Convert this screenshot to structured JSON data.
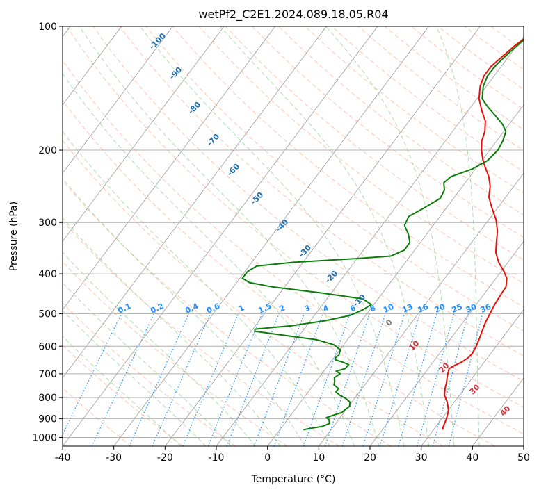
{
  "chart_data": {
    "type": "line",
    "title": "wetPf2_C2E1.2024.089.18.05.R04",
    "xlabel": "Temperature (°C)",
    "ylabel": "Pressure (hPa)",
    "xlim": [
      -40,
      50
    ],
    "ylim": [
      1050,
      100
    ],
    "x_ticks": [
      "-40",
      "-30",
      "-20",
      "-10",
      "0",
      "10",
      "20",
      "30",
      "40",
      "50"
    ],
    "y_ticks": [
      {
        "value": 100,
        "label": "100"
      },
      {
        "value": 200,
        "label": "200"
      },
      {
        "value": 300,
        "label": "300"
      },
      {
        "value": 400,
        "label": "400"
      },
      {
        "value": 500,
        "label": "500"
      },
      {
        "value": 600,
        "label": "600"
      },
      {
        "value": 700,
        "label": "700"
      },
      {
        "value": 800,
        "label": "800"
      },
      {
        "value": 900,
        "label": "900"
      },
      {
        "value": 1000,
        "label": "1000"
      }
    ],
    "isotherm_labels": [
      "-100",
      "-90",
      "-80",
      "-70",
      "-60",
      "-50",
      "-40",
      "-30",
      "-20",
      "-10",
      "0",
      "10",
      "20",
      "30",
      "40"
    ],
    "mixing_ratio_labels": [
      "0.1",
      "0.2",
      "0.4",
      "0.6",
      "1",
      "1.5",
      "2",
      "3",
      "4",
      "6",
      "8",
      "10",
      "13",
      "16",
      "20",
      "25",
      "30",
      "36"
    ],
    "colors": {
      "temperature": "#e8100a",
      "dewpoint": "#0a7d0a",
      "isotherm_label_cold": "#1f6fb0",
      "isotherm_label_zero": "#7a7a7a",
      "isotherm_label_warm": "#d0313a",
      "mixing_ratio": "#1f8fff",
      "dry_adiabat": "#ff9c7a",
      "moist_adiabat": "#6bbf6b",
      "skewed_isotherm": "#9a9a9a",
      "grid": "#b0b0b0"
    },
    "series": [
      {
        "name": "Temperature",
        "points": [
          [
            31.8,
            958
          ],
          [
            31.5,
            945
          ],
          [
            30.9,
            900
          ],
          [
            30.1,
            860
          ],
          [
            28.6,
            820
          ],
          [
            27.1,
            790
          ],
          [
            26.2,
            760
          ],
          [
            25.6,
            735
          ],
          [
            24.7,
            705
          ],
          [
            24.1,
            680
          ],
          [
            24.6,
            670
          ],
          [
            25.6,
            655
          ],
          [
            26.2,
            640
          ],
          [
            26.4,
            625
          ],
          [
            26.1,
            600
          ],
          [
            25.6,
            575
          ],
          [
            25.0,
            550
          ],
          [
            24.4,
            525
          ],
          [
            24.0,
            500
          ],
          [
            23.6,
            475
          ],
          [
            23.3,
            445
          ],
          [
            23.2,
            430
          ],
          [
            22.1,
            410
          ],
          [
            20.6,
            395
          ],
          [
            18.2,
            375
          ],
          [
            16.2,
            355
          ],
          [
            14.8,
            335
          ],
          [
            13.4,
            315
          ],
          [
            11.4,
            295
          ],
          [
            8.7,
            275
          ],
          [
            6.7,
            260
          ],
          [
            5.4,
            245
          ],
          [
            3.7,
            232
          ],
          [
            1.6,
            220
          ],
          [
            -0.1,
            210
          ],
          [
            -1.6,
            200
          ],
          [
            -2.9,
            190
          ],
          [
            -3.7,
            180
          ],
          [
            -5.1,
            170
          ],
          [
            -7.4,
            160
          ],
          [
            -9.6,
            150
          ],
          [
            -11.2,
            140
          ],
          [
            -12.0,
            132
          ],
          [
            -12.0,
            125
          ],
          [
            -11.2,
            118
          ],
          [
            -10.5,
            112
          ],
          [
            -9.4,
            106
          ],
          [
            -8.6,
            100
          ]
        ]
      },
      {
        "name": "Dewpoint",
        "points": [
          [
            4.6,
            958
          ],
          [
            5.8,
            950
          ],
          [
            7.8,
            940
          ],
          [
            8.8,
            925
          ],
          [
            8.1,
            905
          ],
          [
            7.3,
            895
          ],
          [
            8.6,
            880
          ],
          [
            9.6,
            870
          ],
          [
            9.8,
            855
          ],
          [
            10.2,
            840
          ],
          [
            9.6,
            820
          ],
          [
            8.4,
            805
          ],
          [
            6.7,
            790
          ],
          [
            5.4,
            775
          ],
          [
            5.4,
            760
          ],
          [
            4.0,
            745
          ],
          [
            3.6,
            730
          ],
          [
            3.0,
            715
          ],
          [
            3.6,
            700
          ],
          [
            2.4,
            690
          ],
          [
            3.8,
            680
          ],
          [
            3.9,
            665
          ],
          [
            2.2,
            655
          ],
          [
            0.7,
            648
          ],
          [
            0.3,
            640
          ],
          [
            0.6,
            630
          ],
          [
            0.1,
            612
          ],
          [
            -1.9,
            595
          ],
          [
            -6.1,
            578
          ],
          [
            -13.7,
            563
          ],
          [
            -19.3,
            552
          ],
          [
            -19.6,
            545
          ],
          [
            -12.9,
            535
          ],
          [
            -7.1,
            520
          ],
          [
            -3.1,
            505
          ],
          [
            -1.4,
            490
          ],
          [
            -0.5,
            475
          ],
          [
            -3.0,
            460
          ],
          [
            -12.0,
            445
          ],
          [
            -22.5,
            430
          ],
          [
            -27.5,
            420
          ],
          [
            -29.5,
            410
          ],
          [
            -29.5,
            395
          ],
          [
            -28.5,
            383
          ],
          [
            -22.0,
            375
          ],
          [
            -10.0,
            367
          ],
          [
            -3.8,
            362
          ],
          [
            -2.0,
            350
          ],
          [
            -2.1,
            335
          ],
          [
            -3.6,
            320
          ],
          [
            -5.6,
            305
          ],
          [
            -6.1,
            290
          ],
          [
            -4.4,
            277
          ],
          [
            -2.6,
            262
          ],
          [
            -3.0,
            250
          ],
          [
            -4.2,
            240
          ],
          [
            -3.7,
            232
          ],
          [
            -0.6,
            222
          ],
          [
            1.1,
            212
          ],
          [
            1.6,
            200
          ],
          [
            1.2,
            190
          ],
          [
            0.4,
            180
          ],
          [
            -1.3,
            173
          ],
          [
            -3.9,
            165
          ],
          [
            -6.7,
            157
          ],
          [
            -9.0,
            150
          ],
          [
            -10.6,
            140
          ],
          [
            -11.3,
            132
          ],
          [
            -11.2,
            124
          ],
          [
            -10.5,
            116
          ],
          [
            -9.5,
            108
          ],
          [
            -8.6,
            100
          ]
        ]
      }
    ]
  }
}
